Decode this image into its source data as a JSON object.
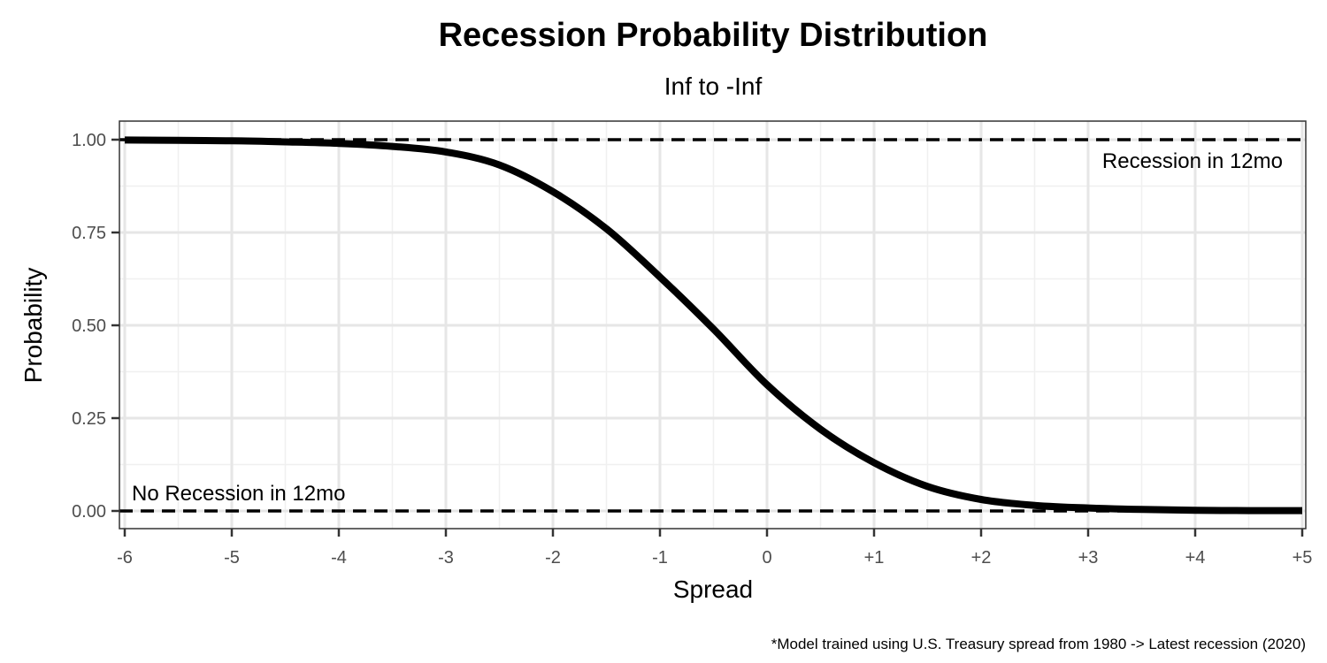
{
  "chart_data": {
    "type": "line",
    "title": "Recession Probability Distribution",
    "subtitle": "Inf to -Inf",
    "xlabel": "Spread",
    "ylabel": "Probability",
    "caption": "*Model trained using U.S. Treasury spread from 1980 -> Latest recession (2020)",
    "xlim": [
      -6,
      5
    ],
    "ylim": [
      0,
      1
    ],
    "x_ticks": [
      -6,
      -5,
      -4,
      -3,
      -2,
      -1,
      0,
      1,
      2,
      3,
      4,
      5
    ],
    "x_tick_labels": [
      "-6",
      "-5",
      "-4",
      "-3",
      "-2",
      "-1",
      "0",
      "+1",
      "+2",
      "+3",
      "+4",
      "+5"
    ],
    "y_ticks": [
      0,
      0.25,
      0.5,
      0.75,
      1
    ],
    "y_tick_labels": [
      "0.00",
      "0.25",
      "0.50",
      "0.75",
      "1.00"
    ],
    "grid": true,
    "series": [
      {
        "values_x": [
          -6,
          -5.5,
          -5,
          -4.5,
          -4,
          -3.5,
          -3,
          -2.5,
          -2,
          -1.5,
          -1,
          -0.5,
          0,
          0.5,
          1,
          1.5,
          2,
          2.5,
          3,
          3.5,
          4,
          4.5,
          5
        ],
        "values_y": [
          0.999,
          0.998,
          0.997,
          0.994,
          0.99,
          0.982,
          0.967,
          0.932,
          0.86,
          0.76,
          0.63,
          0.49,
          0.34,
          0.22,
          0.13,
          0.066,
          0.031,
          0.015,
          0.008,
          0.004,
          0.002,
          0.001,
          0.001
        ],
        "color": "#000000"
      }
    ],
    "reference_lines": [
      {
        "y": 1,
        "style": "dashed",
        "label": "Recession in 12mo"
      },
      {
        "y": 0,
        "style": "dashed",
        "label": "No Recession in 12mo"
      }
    ]
  }
}
